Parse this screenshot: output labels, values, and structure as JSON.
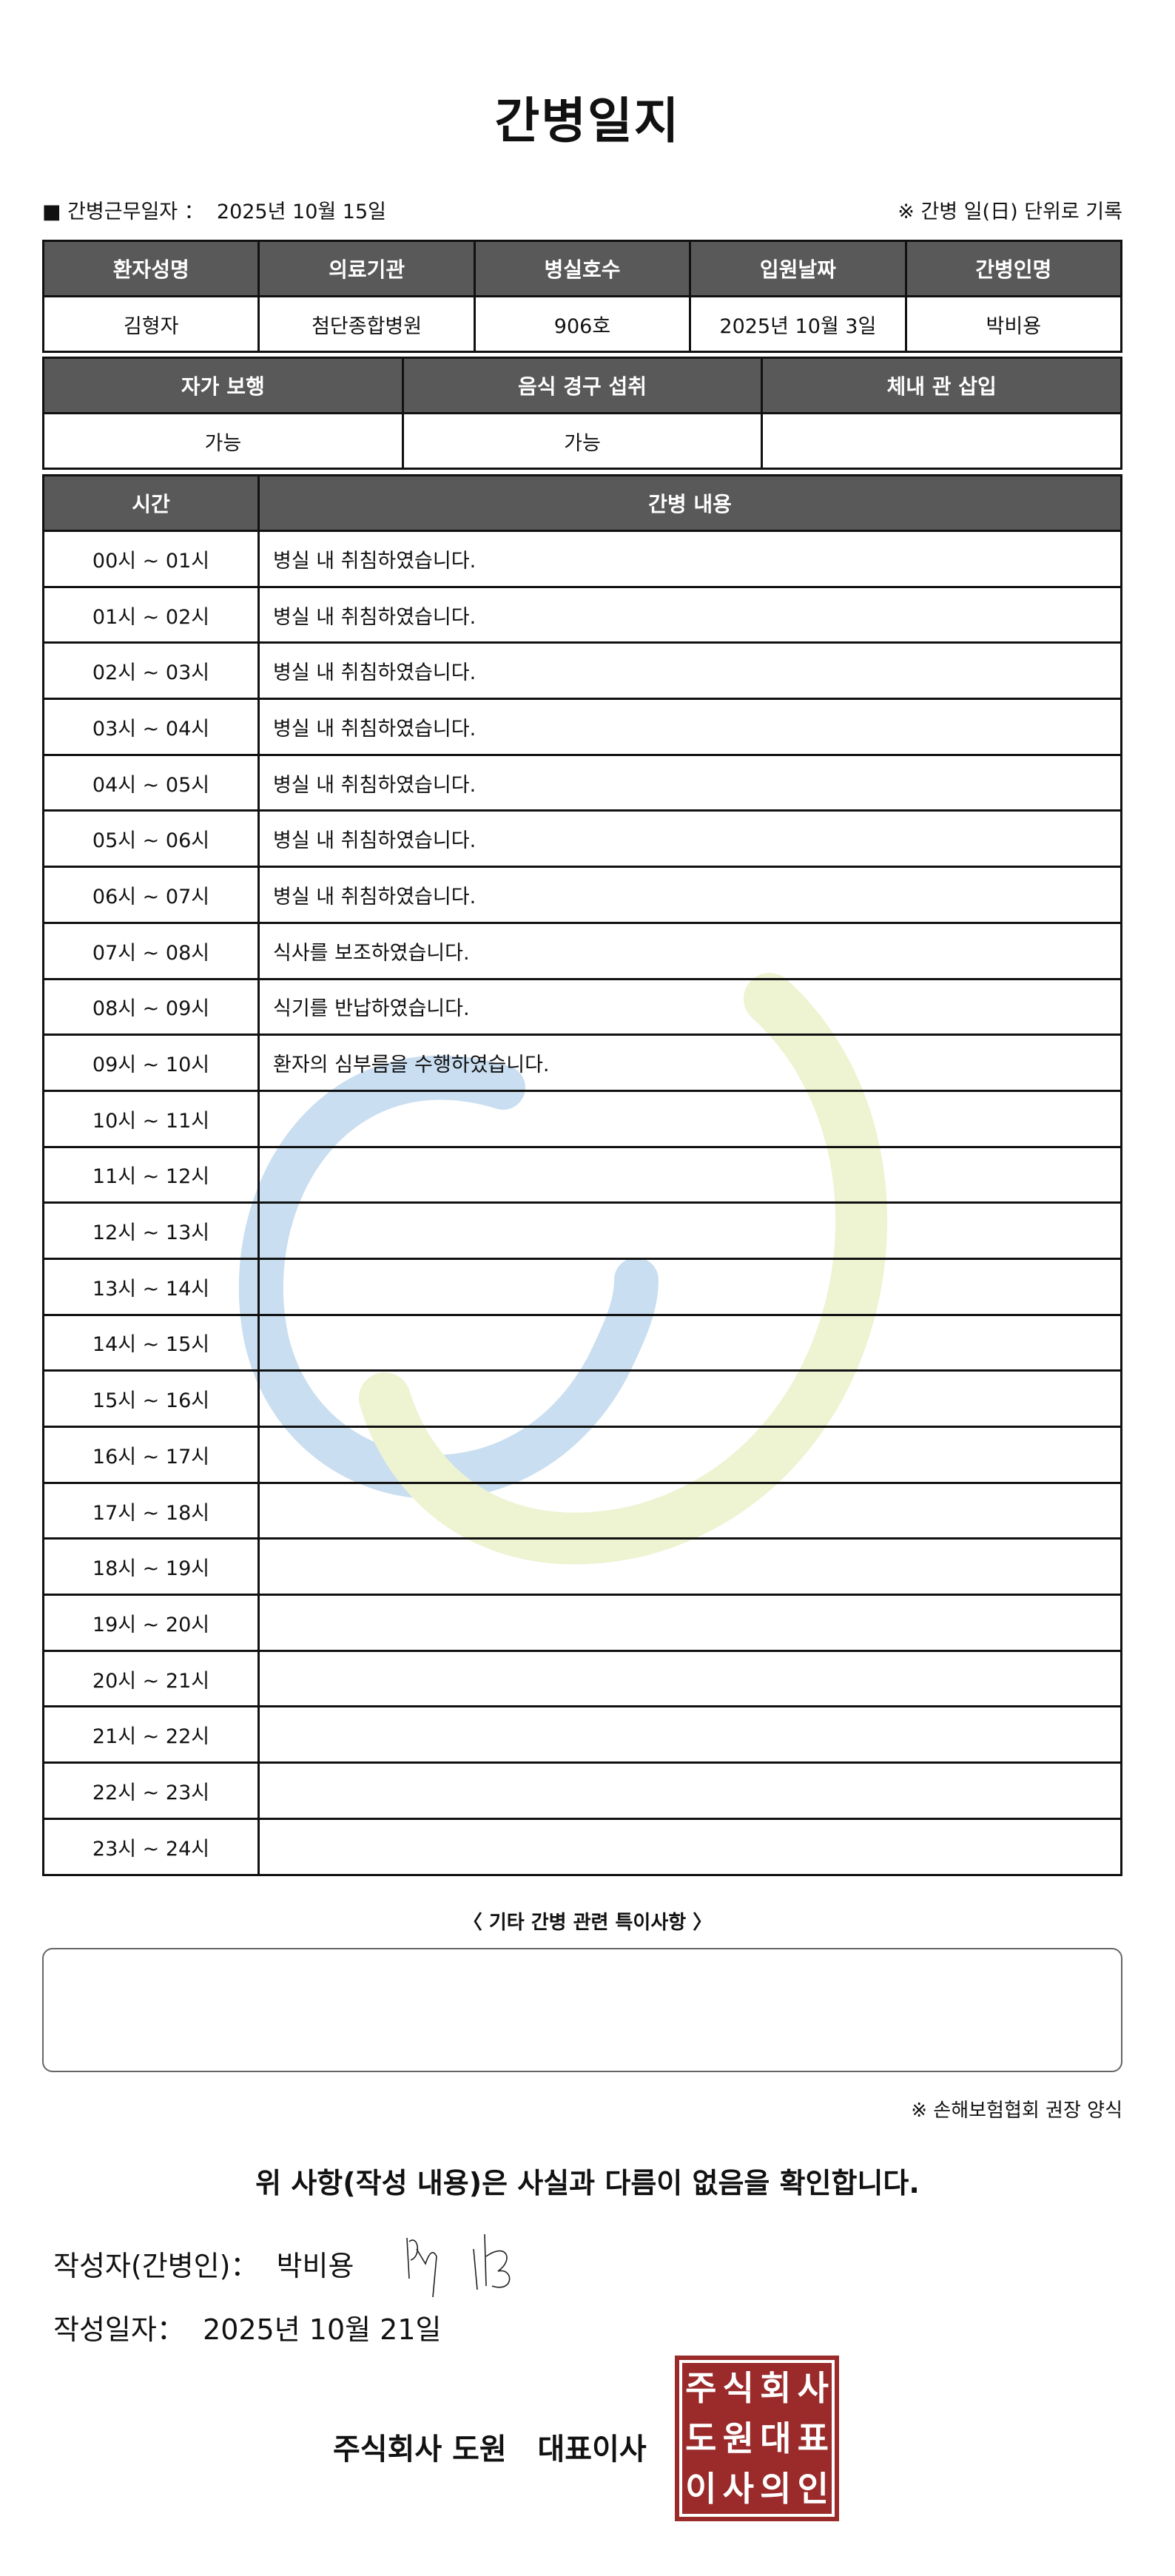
{
  "title": "간병일지",
  "work_date_label": "■ 간병근무일자 ：",
  "work_date": "2025년 10월 15일",
  "daily_note": "※ 간병 일(日) 단위로 기록",
  "patient_table": {
    "headers": [
      "환자성명",
      "의료기관",
      "병실호수",
      "입원날짜",
      "간병인명"
    ],
    "values": [
      "김형자",
      "첨단종합병원",
      "906호",
      "2025년 10월 3일",
      "박비용"
    ]
  },
  "status_table": {
    "headers": [
      "자가 보행",
      "음식 경구 섭취",
      "체내 관 삽입"
    ],
    "values": [
      "가능",
      "가능",
      ""
    ]
  },
  "log_table": {
    "headers": [
      "시간",
      "간병 내용"
    ],
    "rows": [
      {
        "time": "00시 ~ 01시",
        "content": "병실 내 취침하였습니다."
      },
      {
        "time": "01시 ~ 02시",
        "content": "병실 내 취침하였습니다."
      },
      {
        "time": "02시 ~ 03시",
        "content": "병실 내 취침하였습니다."
      },
      {
        "time": "03시 ~ 04시",
        "content": "병실 내 취침하였습니다."
      },
      {
        "time": "04시 ~ 05시",
        "content": "병실 내 취침하였습니다."
      },
      {
        "time": "05시 ~ 06시",
        "content": "병실 내 취침하였습니다."
      },
      {
        "time": "06시 ~ 07시",
        "content": "병실 내 취침하였습니다."
      },
      {
        "time": "07시 ~ 08시",
        "content": "식사를 보조하였습니다."
      },
      {
        "time": "08시 ~ 09시",
        "content": "식기를 반납하였습니다."
      },
      {
        "time": "09시 ~ 10시",
        "content": "환자의 심부름을 수행하였습니다."
      },
      {
        "time": "10시 ~ 11시",
        "content": ""
      },
      {
        "time": "11시 ~ 12시",
        "content": ""
      },
      {
        "time": "12시 ~ 13시",
        "content": ""
      },
      {
        "time": "13시 ~ 14시",
        "content": ""
      },
      {
        "time": "14시 ~ 15시",
        "content": ""
      },
      {
        "time": "15시 ~ 16시",
        "content": ""
      },
      {
        "time": "16시 ~ 17시",
        "content": ""
      },
      {
        "time": "17시 ~ 18시",
        "content": ""
      },
      {
        "time": "18시 ~ 19시",
        "content": ""
      },
      {
        "time": "19시 ~ 20시",
        "content": ""
      },
      {
        "time": "20시 ~ 21시",
        "content": ""
      },
      {
        "time": "21시 ~ 22시",
        "content": ""
      },
      {
        "time": "22시 ~ 23시",
        "content": ""
      },
      {
        "time": "23시 ~ 24시",
        "content": ""
      }
    ]
  },
  "notes": {
    "title": "〈 기타 간병 관련 특이사항 〉",
    "content": ""
  },
  "footnote": "※ 손해보험협회 권장 양식",
  "confirmation": "위 사항(작성 내용)은 사실과 다름이 없음을 확인합니다.",
  "writer_label": "작성자(간병인)：",
  "writer_name": "박비용",
  "written_date_label": "작성일자：",
  "written_date": "2025년 10월 21일",
  "company": "주식회사 도원   대표이사",
  "seal_text": [
    "주",
    "식",
    "회",
    "사",
    "도",
    "원",
    "대",
    "표",
    "이",
    "사",
    "의",
    "인"
  ],
  "colors": {
    "header_bg": "#595959",
    "seal": "#9b2a2a",
    "watermark_blue": "#c9def0",
    "watermark_green": "#eef3d2"
  }
}
